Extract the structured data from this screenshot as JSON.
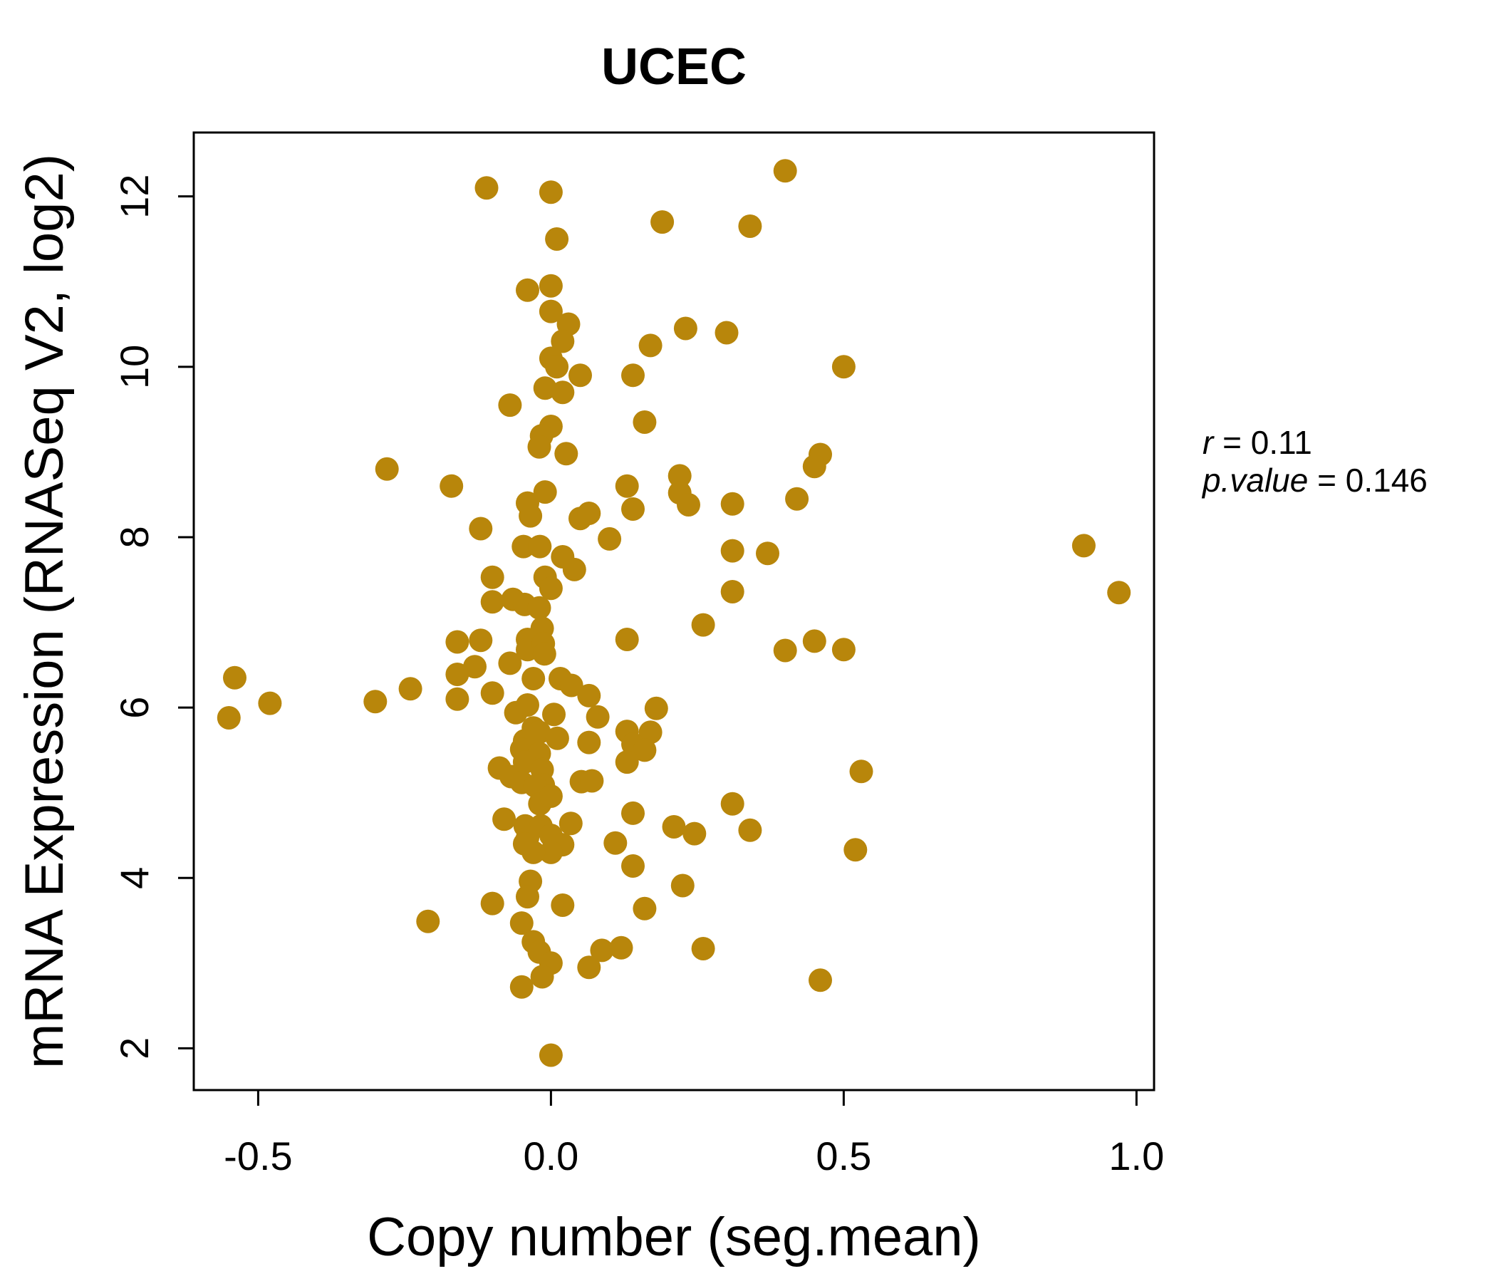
{
  "title": "UCEC",
  "annotation": {
    "r_var": "r",
    "r_rest": " = 0.11",
    "p_var": "p.value",
    "p_rest": " = 0.146"
  },
  "chart_data": {
    "type": "scatter",
    "title": "UCEC",
    "title_color": "#B8860B",
    "xlabel": "Copy number (seg.mean)",
    "ylabel": "mRNA Expression (RNASeq V2, log2)",
    "x_tick_labels": [
      "-0.5",
      "0.0",
      "0.5",
      "1.0"
    ],
    "x_ticks": [
      -0.5,
      0.0,
      0.5,
      1.0
    ],
    "y_tick_labels": [
      "2",
      "4",
      "6",
      "8",
      "10",
      "12"
    ],
    "y_ticks": [
      2,
      4,
      6,
      8,
      10,
      12
    ],
    "xlim": [
      -0.61,
      1.03
    ],
    "ylim": [
      1.51,
      12.75
    ],
    "grid": false,
    "legend": "none",
    "point_color": "#B8860B",
    "point_radius_px": 16.5,
    "correlation_r": 0.11,
    "p_value": 0.146,
    "points": [
      [
        -0.11,
        12.1
      ],
      [
        0.0,
        12.05
      ],
      [
        0.4,
        12.3
      ],
      [
        0.19,
        11.7
      ],
      [
        0.34,
        11.65
      ],
      [
        0.01,
        11.5
      ],
      [
        -0.04,
        10.9
      ],
      [
        0.0,
        10.95
      ],
      [
        0.0,
        10.65
      ],
      [
        0.03,
        10.5
      ],
      [
        0.23,
        10.45
      ],
      [
        0.3,
        10.4
      ],
      [
        0.02,
        10.3
      ],
      [
        0.17,
        10.25
      ],
      [
        0.0,
        10.1
      ],
      [
        0.01,
        10.0
      ],
      [
        0.5,
        10.0
      ],
      [
        0.05,
        9.9
      ],
      [
        0.14,
        9.9
      ],
      [
        -0.01,
        9.75
      ],
      [
        0.02,
        9.7
      ],
      [
        -0.07,
        9.55
      ],
      [
        0.16,
        9.35
      ],
      [
        0.0,
        9.3
      ],
      [
        -0.016,
        9.19
      ],
      [
        -0.02,
        9.06
      ],
      [
        0.026,
        8.98
      ],
      [
        0.46,
        8.97
      ],
      [
        0.45,
        8.83
      ],
      [
        -0.28,
        8.8
      ],
      [
        -0.17,
        8.6
      ],
      [
        -0.01,
        8.53
      ],
      [
        -0.04,
        8.4
      ],
      [
        -0.035,
        8.25
      ],
      [
        0.22,
        8.72
      ],
      [
        0.22,
        8.52
      ],
      [
        0.235,
        8.38
      ],
      [
        0.31,
        8.39
      ],
      [
        0.42,
        8.45
      ],
      [
        0.13,
        8.6
      ],
      [
        0.14,
        8.33
      ],
      [
        -0.12,
        8.1
      ],
      [
        0.05,
        8.22
      ],
      [
        0.065,
        8.28
      ],
      [
        0.1,
        7.98
      ],
      [
        -0.047,
        7.89
      ],
      [
        -0.019,
        7.89
      ],
      [
        0.02,
        7.77
      ],
      [
        0.04,
        7.62
      ],
      [
        -0.1,
        7.53
      ],
      [
        -0.01,
        7.53
      ],
      [
        0.0,
        7.4
      ],
      [
        0.31,
        7.84
      ],
      [
        0.37,
        7.81
      ],
      [
        0.91,
        7.9
      ],
      [
        0.97,
        7.35
      ],
      [
        -0.1,
        7.24
      ],
      [
        -0.065,
        7.27
      ],
      [
        -0.045,
        7.21
      ],
      [
        -0.02,
        7.17
      ],
      [
        0.31,
        7.36
      ],
      [
        -0.015,
        6.93
      ],
      [
        -0.04,
        6.8
      ],
      [
        -0.04,
        6.68
      ],
      [
        -0.013,
        6.75
      ],
      [
        -0.011,
        6.63
      ],
      [
        -0.12,
        6.79
      ],
      [
        -0.16,
        6.77
      ],
      [
        -0.13,
        6.48
      ],
      [
        -0.16,
        6.39
      ],
      [
        -0.07,
        6.52
      ],
      [
        0.13,
        6.8
      ],
      [
        0.26,
        6.97
      ],
      [
        0.45,
        6.78
      ],
      [
        0.4,
        6.67
      ],
      [
        0.5,
        6.68
      ],
      [
        -0.54,
        6.35
      ],
      [
        -0.03,
        6.34
      ],
      [
        0.016,
        6.34
      ],
      [
        -0.48,
        6.05
      ],
      [
        -0.55,
        5.88
      ],
      [
        -0.3,
        6.07
      ],
      [
        -0.24,
        6.22
      ],
      [
        -0.16,
        6.1
      ],
      [
        -0.1,
        6.17
      ],
      [
        0.035,
        6.26
      ],
      [
        0.065,
        6.14
      ],
      [
        0.18,
        5.99
      ],
      [
        -0.06,
        5.94
      ],
      [
        -0.04,
        6.03
      ],
      [
        0.005,
        5.92
      ],
      [
        0.08,
        5.89
      ],
      [
        0.13,
        5.72
      ],
      [
        0.17,
        5.71
      ],
      [
        0.14,
        5.57
      ],
      [
        0.16,
        5.5
      ],
      [
        0.13,
        5.36
      ],
      [
        -0.03,
        5.76
      ],
      [
        -0.02,
        5.71
      ],
      [
        -0.045,
        5.61
      ],
      [
        -0.05,
        5.51
      ],
      [
        -0.02,
        5.46
      ],
      [
        0.011,
        5.64
      ],
      [
        0.065,
        5.59
      ],
      [
        -0.088,
        5.29
      ],
      [
        -0.068,
        5.19
      ],
      [
        -0.045,
        5.36
      ],
      [
        -0.015,
        5.27
      ],
      [
        -0.013,
        5.09
      ],
      [
        -0.05,
        5.12
      ],
      [
        -0.027,
        5.08
      ],
      [
        0.052,
        5.13
      ],
      [
        0.07,
        5.14
      ],
      [
        0.53,
        5.25
      ],
      [
        0.31,
        4.87
      ],
      [
        -0.019,
        4.87
      ],
      [
        0.0,
        4.96
      ],
      [
        0.245,
        4.52
      ],
      [
        0.34,
        4.56
      ],
      [
        0.21,
        4.6
      ],
      [
        -0.08,
        4.69
      ],
      [
        -0.044,
        4.61
      ],
      [
        -0.017,
        4.61
      ],
      [
        0.034,
        4.64
      ],
      [
        0.11,
        4.41
      ],
      [
        0.14,
        4.76
      ],
      [
        -0.04,
        4.47
      ],
      [
        0.0,
        4.5
      ],
      [
        0.02,
        4.39
      ],
      [
        0.0,
        4.3
      ],
      [
        -0.03,
        4.3
      ],
      [
        -0.045,
        4.4
      ],
      [
        0.52,
        4.33
      ],
      [
        0.14,
        4.14
      ],
      [
        -0.035,
        3.96
      ],
      [
        0.225,
        3.91
      ],
      [
        -0.04,
        3.78
      ],
      [
        -0.1,
        3.7
      ],
      [
        0.02,
        3.68
      ],
      [
        0.16,
        3.64
      ],
      [
        -0.21,
        3.49
      ],
      [
        -0.05,
        3.47
      ],
      [
        -0.03,
        3.25
      ],
      [
        -0.02,
        3.13
      ],
      [
        0.0,
        3.0
      ],
      [
        0.065,
        2.95
      ],
      [
        0.087,
        3.15
      ],
      [
        0.12,
        3.18
      ],
      [
        0.26,
        3.17
      ],
      [
        -0.015,
        2.84
      ],
      [
        -0.05,
        2.72
      ],
      [
        0.46,
        2.8
      ],
      [
        0.0,
        1.92
      ]
    ]
  }
}
